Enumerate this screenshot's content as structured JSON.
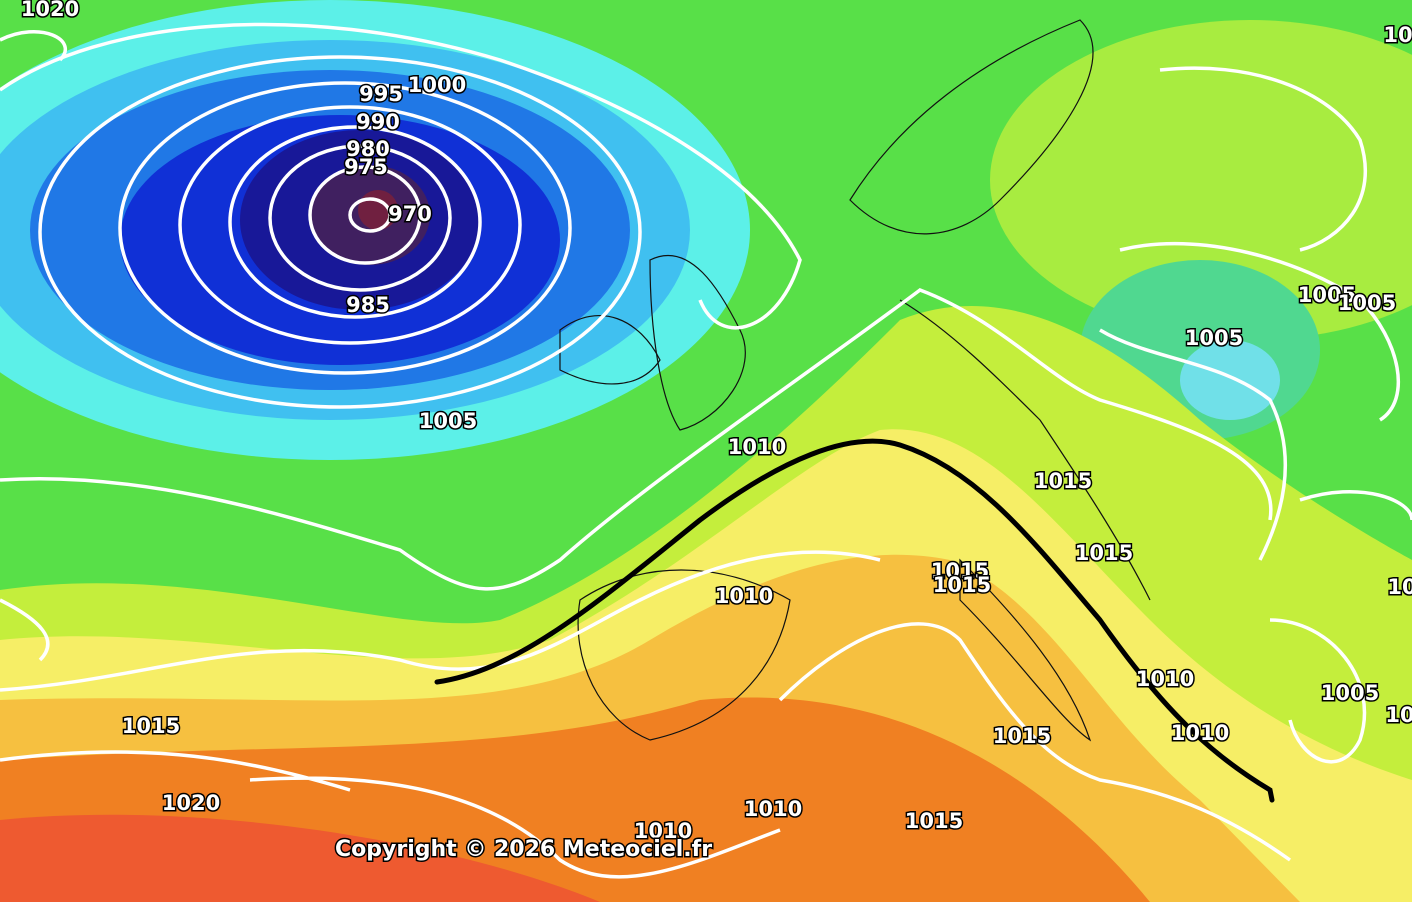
{
  "isobar_labels": [
    "1020",
    "1000",
    "995",
    "990",
    "980",
    "975",
    "970",
    "985",
    "1005",
    "1010",
    "1005",
    "1005",
    "1005",
    "1015",
    "1015",
    "1015",
    "1015",
    "1010",
    "1015",
    "1010",
    "1010",
    "1005",
    "1015",
    "1020",
    "1010",
    "1010",
    "1015",
    "10",
    "10",
    "10"
  ],
  "copyright": "Copyright © 2026 Meteociel.fr"
}
